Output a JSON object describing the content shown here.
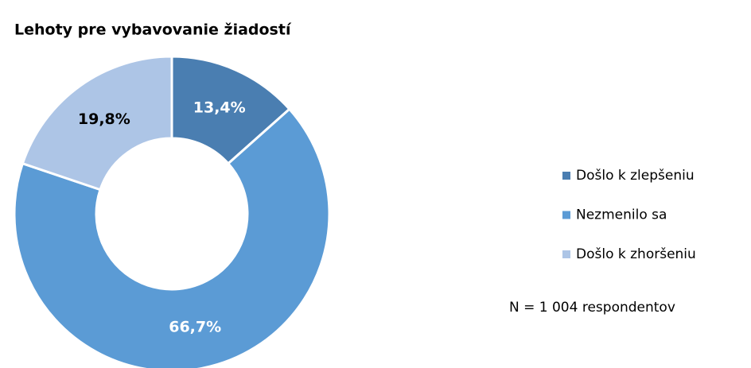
{
  "chart_data": {
    "type": "donut",
    "title": "Lehoty pre vybavovanie žiadostí",
    "categories": [
      "Došlo k zlepšeniu",
      "Nezmenilo sa",
      "Došlo k zhoršeniu"
    ],
    "values": [
      13.4,
      66.7,
      19.8
    ],
    "value_labels": [
      "13,4%",
      "66,7%",
      "19,8%"
    ],
    "colors": [
      "#4a7eb1",
      "#5b9bd5",
      "#adc5e6"
    ],
    "legend": "right",
    "note": "N = 1 004 respondentov"
  }
}
